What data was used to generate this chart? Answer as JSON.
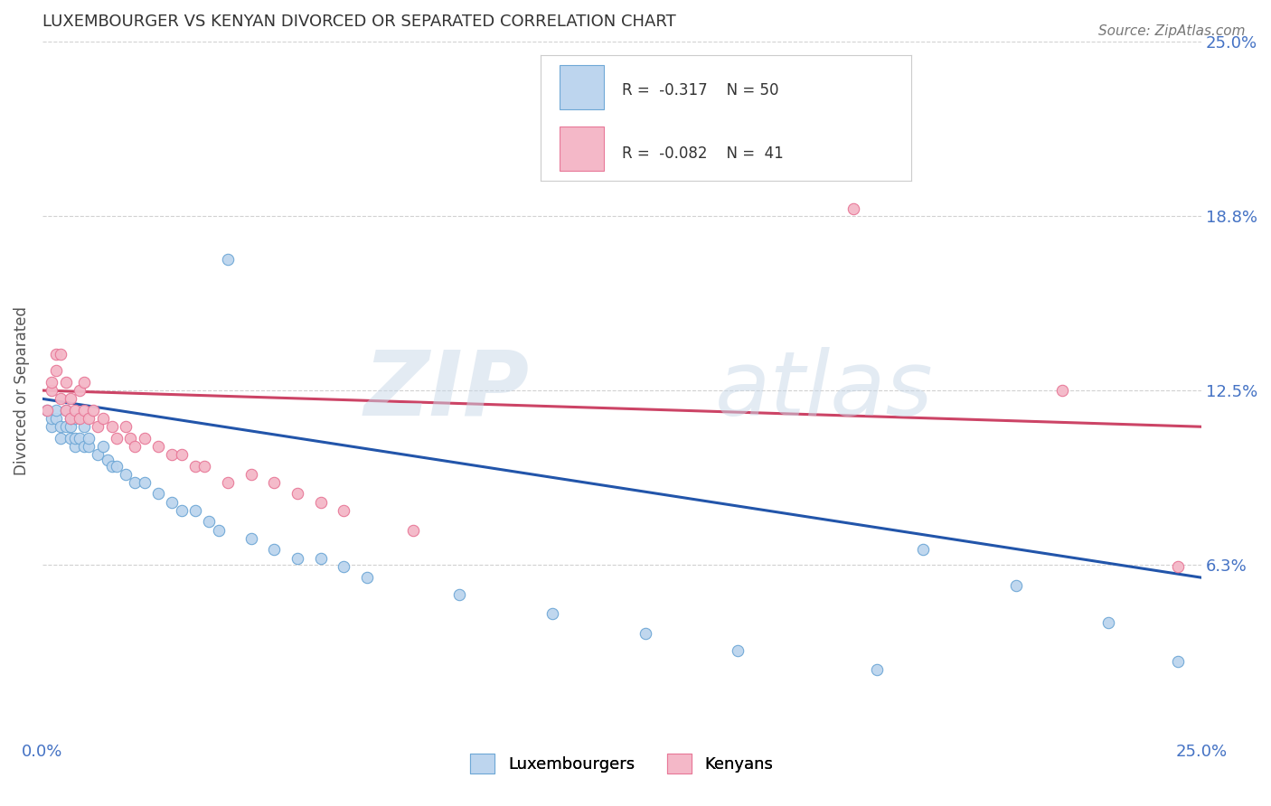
{
  "title": "LUXEMBOURGER VS KENYAN DIVORCED OR SEPARATED CORRELATION CHART",
  "source": "Source: ZipAtlas.com",
  "ylabel": "Divorced or Separated",
  "xlim": [
    0.0,
    0.25
  ],
  "ylim": [
    0.0,
    0.25
  ],
  "xticks": [
    0.0,
    0.25
  ],
  "xtick_labels": [
    "0.0%",
    "25.0%"
  ],
  "yticks": [
    0.0625,
    0.125,
    0.1875,
    0.25
  ],
  "ytick_labels": [
    "6.3%",
    "12.5%",
    "18.8%",
    "25.0%"
  ],
  "blue_fill": "#bdd5ee",
  "blue_edge": "#6fa8d6",
  "pink_fill": "#f4b8c8",
  "pink_edge": "#e87898",
  "blue_line_color": "#2255aa",
  "pink_line_color": "#cc4466",
  "blue_scatter": [
    [
      0.001,
      0.118
    ],
    [
      0.002,
      0.112
    ],
    [
      0.002,
      0.115
    ],
    [
      0.003,
      0.115
    ],
    [
      0.003,
      0.118
    ],
    [
      0.004,
      0.108
    ],
    [
      0.004,
      0.112
    ],
    [
      0.005,
      0.112
    ],
    [
      0.005,
      0.118
    ],
    [
      0.006,
      0.108
    ],
    [
      0.006,
      0.112
    ],
    [
      0.006,
      0.115
    ],
    [
      0.007,
      0.105
    ],
    [
      0.007,
      0.108
    ],
    [
      0.007,
      0.115
    ],
    [
      0.008,
      0.108
    ],
    [
      0.009,
      0.105
    ],
    [
      0.009,
      0.112
    ],
    [
      0.01,
      0.105
    ],
    [
      0.01,
      0.108
    ],
    [
      0.012,
      0.102
    ],
    [
      0.013,
      0.105
    ],
    [
      0.014,
      0.1
    ],
    [
      0.015,
      0.098
    ],
    [
      0.016,
      0.098
    ],
    [
      0.018,
      0.095
    ],
    [
      0.02,
      0.092
    ],
    [
      0.022,
      0.092
    ],
    [
      0.025,
      0.088
    ],
    [
      0.028,
      0.085
    ],
    [
      0.03,
      0.082
    ],
    [
      0.033,
      0.082
    ],
    [
      0.036,
      0.078
    ],
    [
      0.038,
      0.075
    ],
    [
      0.04,
      0.172
    ],
    [
      0.045,
      0.072
    ],
    [
      0.05,
      0.068
    ],
    [
      0.055,
      0.065
    ],
    [
      0.06,
      0.065
    ],
    [
      0.065,
      0.062
    ],
    [
      0.07,
      0.058
    ],
    [
      0.09,
      0.052
    ],
    [
      0.11,
      0.045
    ],
    [
      0.13,
      0.038
    ],
    [
      0.15,
      0.032
    ],
    [
      0.18,
      0.025
    ],
    [
      0.19,
      0.068
    ],
    [
      0.21,
      0.055
    ],
    [
      0.23,
      0.042
    ],
    [
      0.245,
      0.028
    ]
  ],
  "pink_scatter": [
    [
      0.001,
      0.118
    ],
    [
      0.002,
      0.125
    ],
    [
      0.002,
      0.128
    ],
    [
      0.003,
      0.132
    ],
    [
      0.003,
      0.138
    ],
    [
      0.004,
      0.122
    ],
    [
      0.004,
      0.138
    ],
    [
      0.005,
      0.118
    ],
    [
      0.005,
      0.128
    ],
    [
      0.006,
      0.115
    ],
    [
      0.006,
      0.122
    ],
    [
      0.007,
      0.118
    ],
    [
      0.008,
      0.115
    ],
    [
      0.008,
      0.125
    ],
    [
      0.009,
      0.118
    ],
    [
      0.009,
      0.128
    ],
    [
      0.01,
      0.115
    ],
    [
      0.011,
      0.118
    ],
    [
      0.012,
      0.112
    ],
    [
      0.013,
      0.115
    ],
    [
      0.015,
      0.112
    ],
    [
      0.016,
      0.108
    ],
    [
      0.018,
      0.112
    ],
    [
      0.019,
      0.108
    ],
    [
      0.02,
      0.105
    ],
    [
      0.022,
      0.108
    ],
    [
      0.025,
      0.105
    ],
    [
      0.028,
      0.102
    ],
    [
      0.03,
      0.102
    ],
    [
      0.033,
      0.098
    ],
    [
      0.035,
      0.098
    ],
    [
      0.04,
      0.092
    ],
    [
      0.045,
      0.095
    ],
    [
      0.05,
      0.092
    ],
    [
      0.055,
      0.088
    ],
    [
      0.06,
      0.085
    ],
    [
      0.065,
      0.082
    ],
    [
      0.08,
      0.075
    ],
    [
      0.175,
      0.19
    ],
    [
      0.22,
      0.125
    ],
    [
      0.245,
      0.062
    ]
  ],
  "blue_reg_line": [
    [
      0.0,
      0.122
    ],
    [
      0.25,
      0.058
    ]
  ],
  "pink_reg_line": [
    [
      0.0,
      0.125
    ],
    [
      0.25,
      0.112
    ]
  ]
}
